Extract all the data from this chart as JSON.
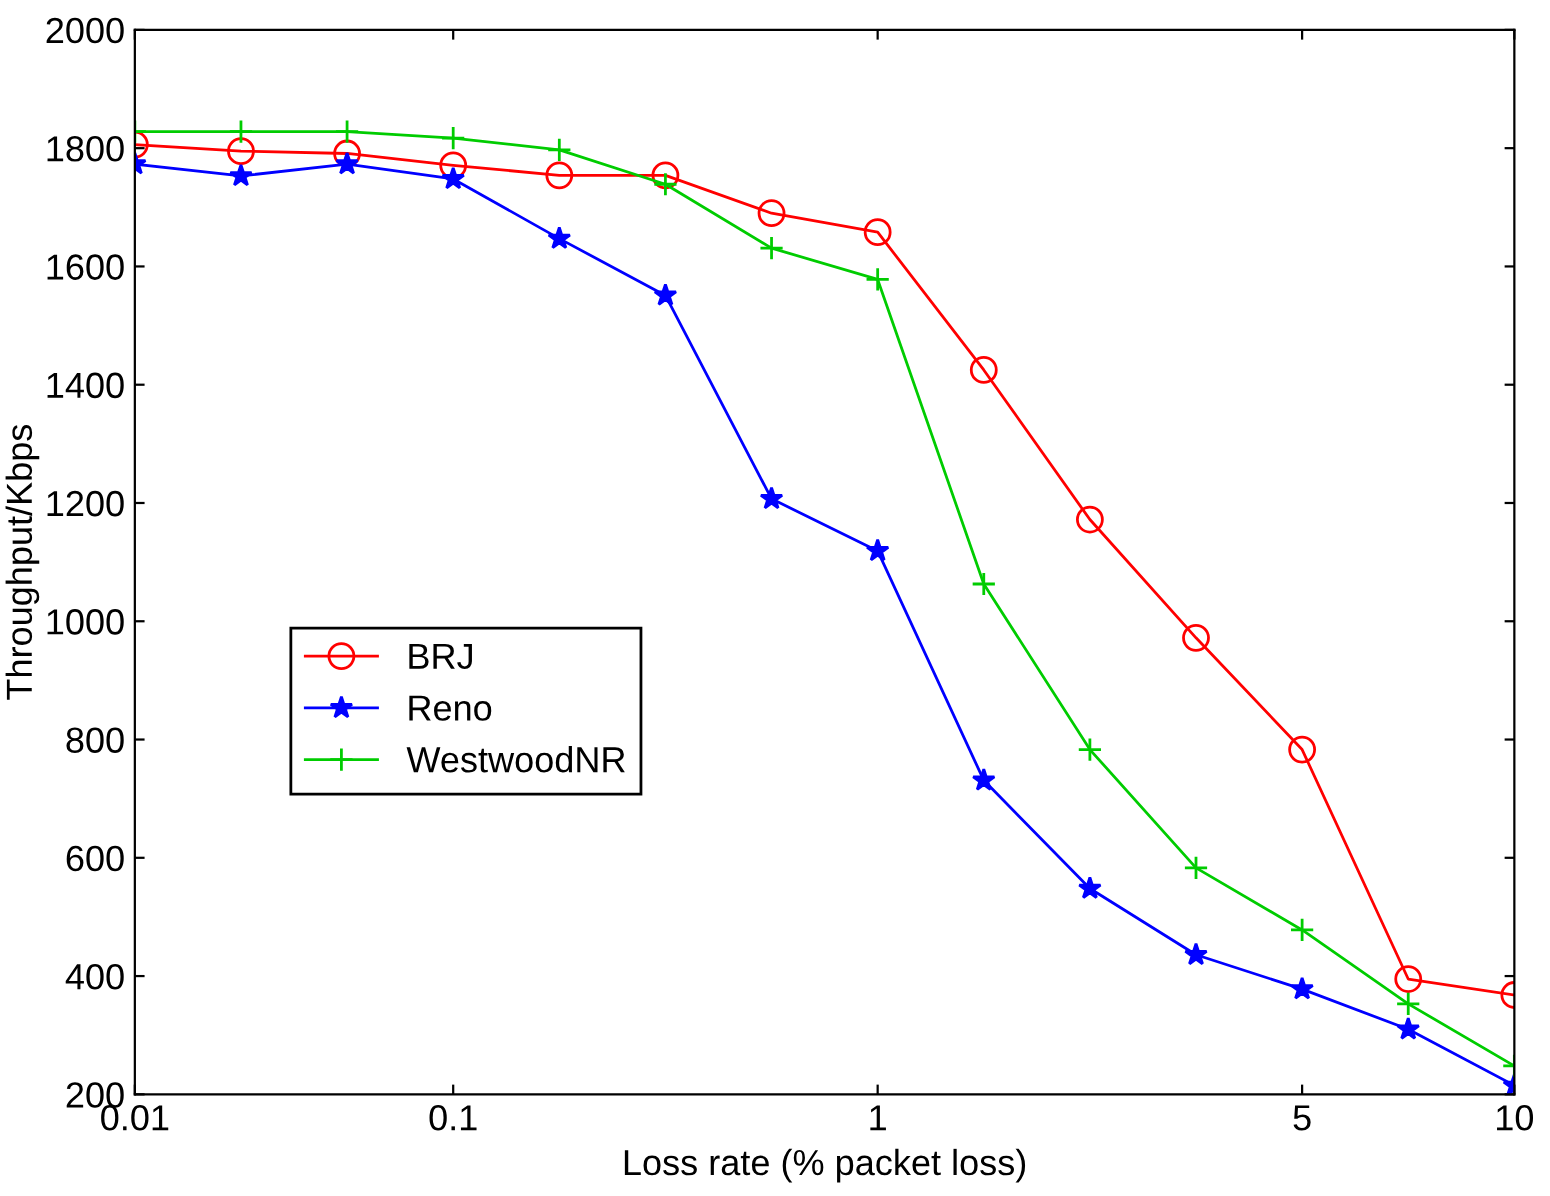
{
  "chart_data": {
    "type": "line",
    "xlabel": "Loss rate (% packet loss)",
    "ylabel": "Throughput/Kbps",
    "categories": [
      "0.01",
      null,
      null,
      "0.1",
      null,
      null,
      null,
      "1",
      null,
      null,
      null,
      "5",
      null,
      "10"
    ],
    "series": [
      {
        "name": "BRJ",
        "color": "#ff0000",
        "marker": "circle",
        "values": [
          1806,
          1795,
          1791,
          1771,
          1754,
          1754,
          1690,
          1658,
          1425,
          1172,
          972,
          783,
          395,
          368
        ]
      },
      {
        "name": "Reno",
        "color": "#0000ff",
        "marker": "star",
        "values": [
          1773,
          1753,
          1773,
          1748,
          1647,
          1551,
          1207,
          1119,
          731,
          548,
          436,
          378,
          310,
          215
        ]
      },
      {
        "name": "WestwoodNR",
        "color": "#00cc00",
        "marker": "cross",
        "values": [
          1828,
          1828,
          1828,
          1817,
          1797,
          1739,
          1631,
          1578,
          1063,
          783,
          583,
          478,
          353,
          248
        ]
      }
    ],
    "ylim": [
      200,
      2000
    ],
    "yticks": [
      200,
      400,
      600,
      800,
      1000,
      1200,
      1400,
      1600,
      1800,
      2000
    ],
    "grid": false,
    "legend": "left"
  }
}
